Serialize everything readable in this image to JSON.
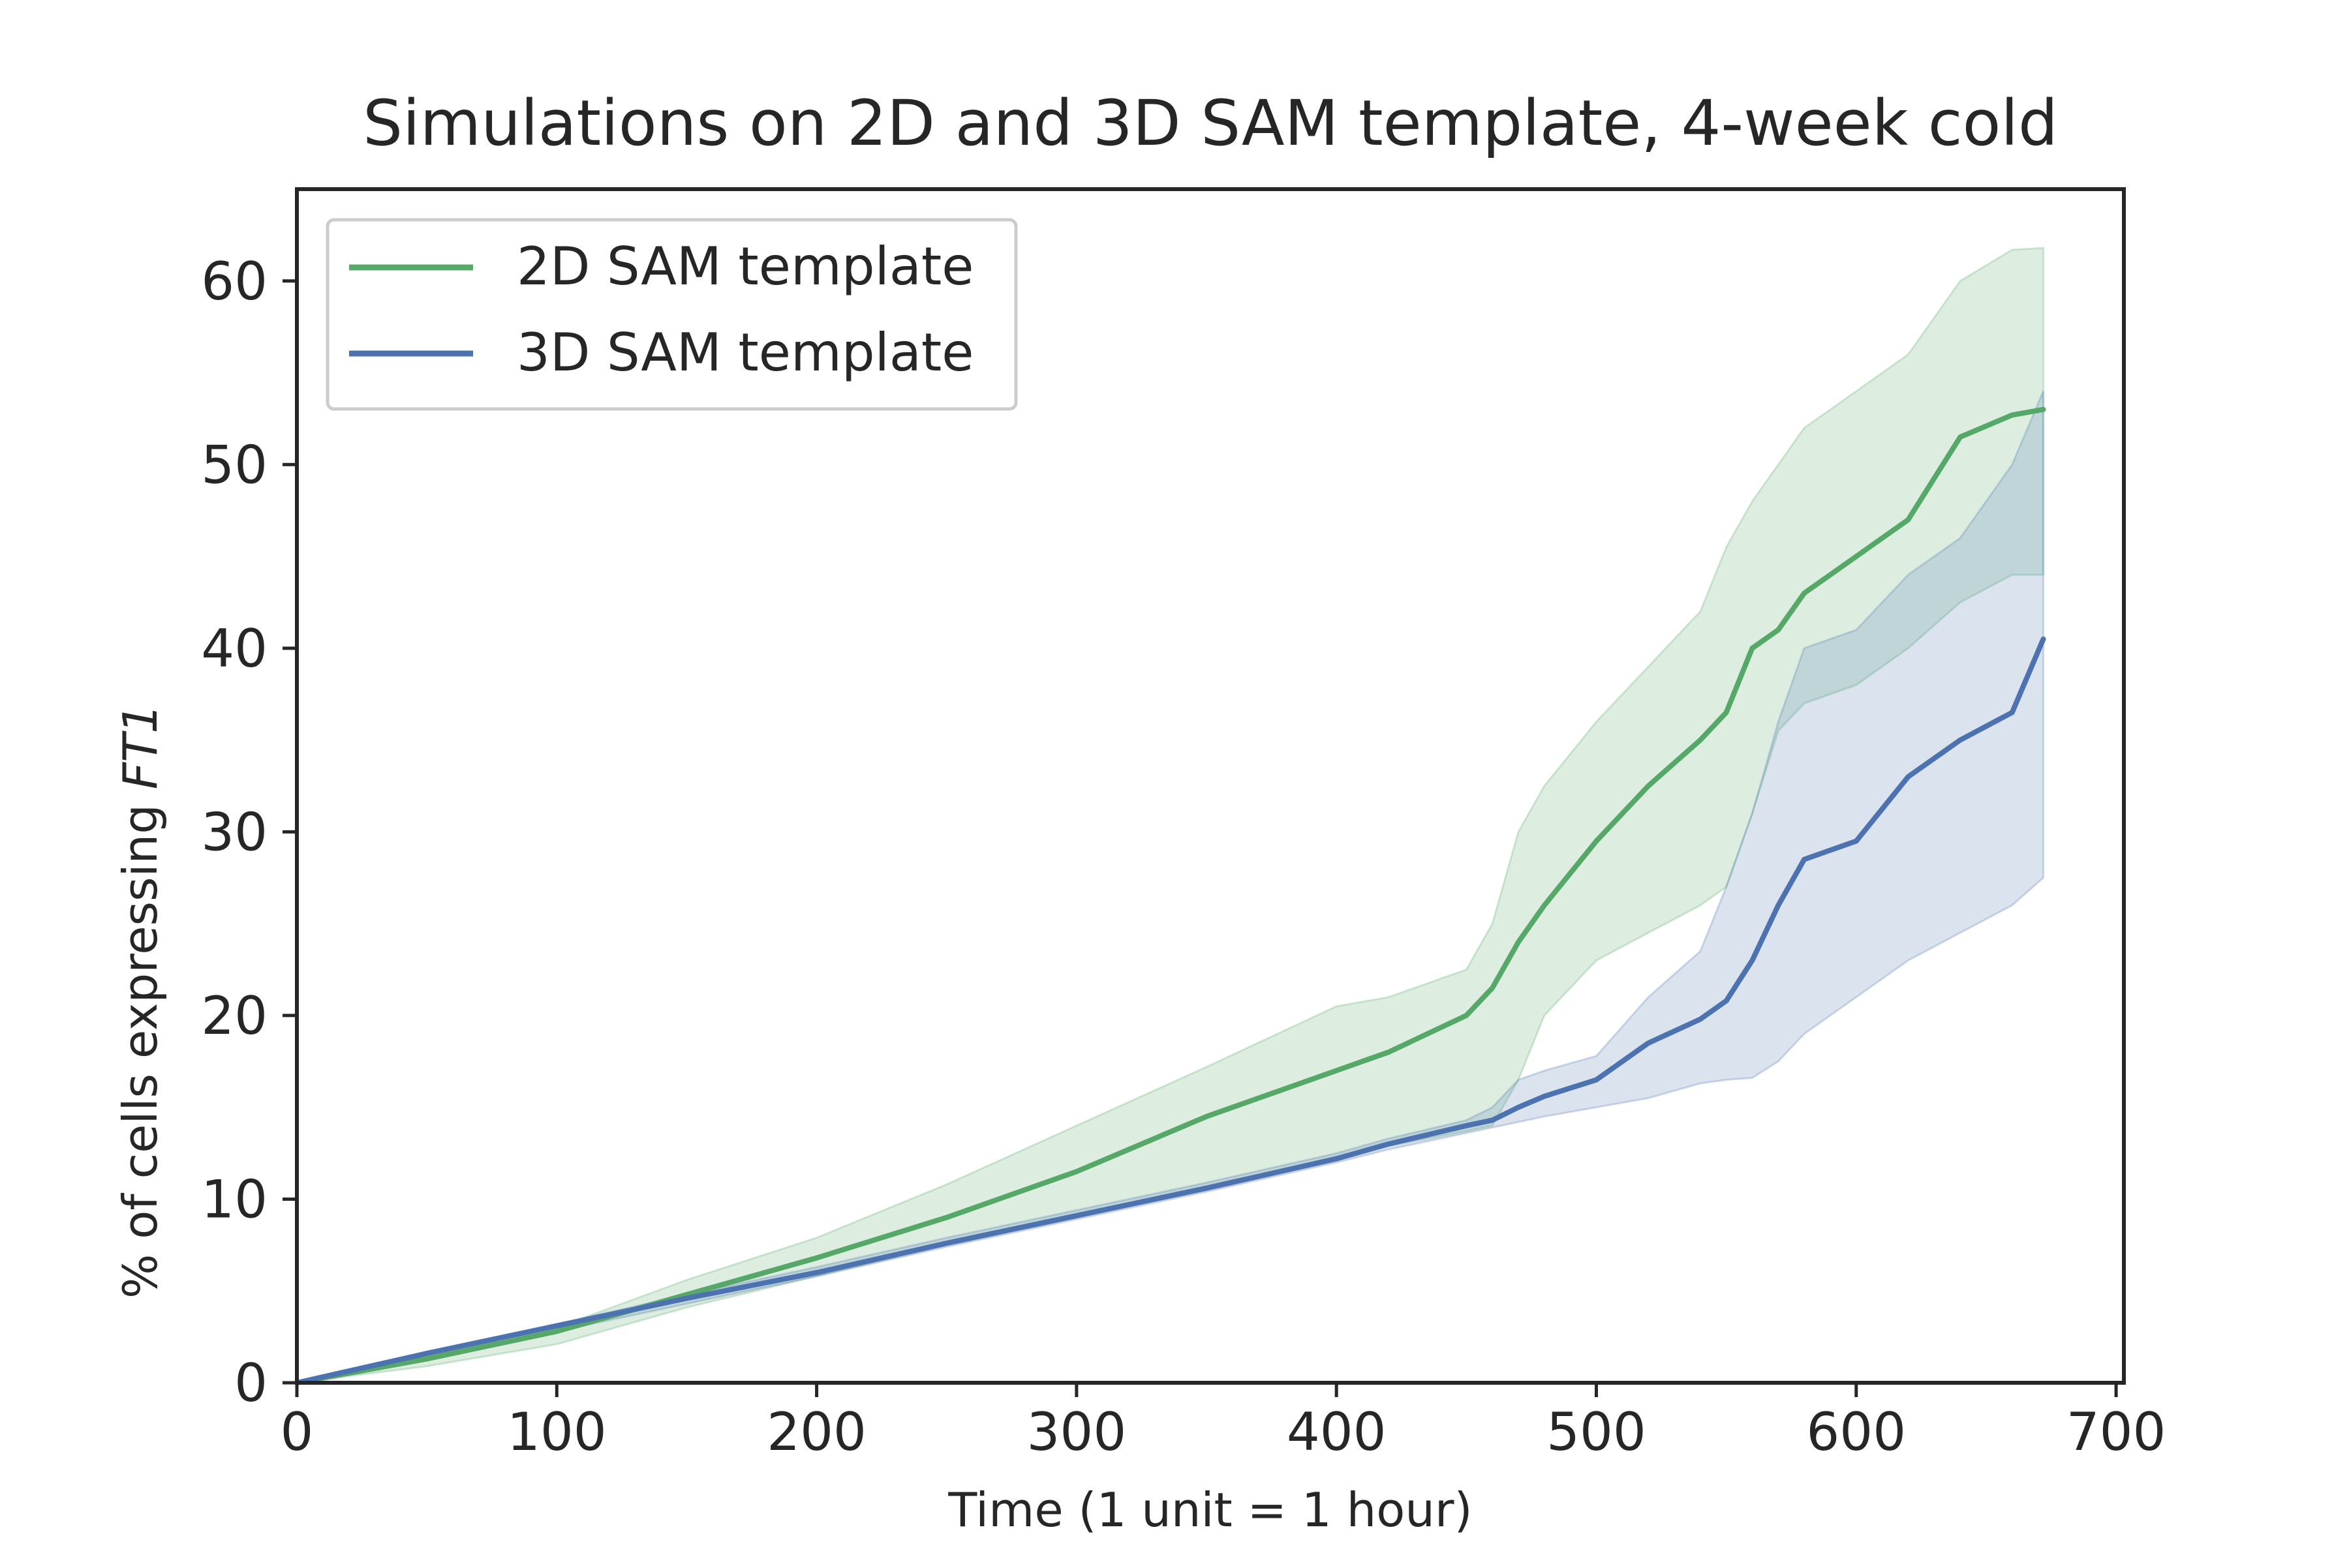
{
  "chart_data": {
    "type": "line",
    "title": "Simulations on 2D and 3D SAM template, 4-week cold",
    "xlabel": "Time (1 unit = 1 hour)",
    "ylabel_prefix": "% of cells expressing ",
    "ylabel_italic": "FT1",
    "xlim": [
      0,
      703
    ],
    "ylim": [
      0,
      65
    ],
    "xticks": [
      0,
      100,
      200,
      300,
      400,
      500,
      600,
      700
    ],
    "yticks": [
      0,
      10,
      20,
      30,
      40,
      50,
      60
    ],
    "grid": false,
    "legend_position": "top-left",
    "x": [
      0,
      50,
      100,
      150,
      200,
      250,
      300,
      350,
      400,
      420,
      450,
      460,
      470,
      480,
      500,
      520,
      540,
      550,
      560,
      570,
      580,
      600,
      620,
      640,
      660,
      672
    ],
    "series": [
      {
        "name": "2D SAM template",
        "color": "#55a868",
        "values": [
          0,
          1.3,
          2.8,
          4.8,
          6.8,
          9.0,
          11.5,
          14.5,
          17.0,
          18.0,
          20.0,
          21.5,
          24.0,
          26.0,
          29.5,
          32.5,
          35.0,
          36.5,
          40.0,
          41.0,
          43.0,
          45.0,
          47.0,
          51.5,
          52.7,
          53.0
        ],
        "lower": [
          0,
          0.9,
          2.1,
          4.1,
          5.8,
          7.5,
          9.0,
          10.7,
          12.3,
          12.9,
          13.7,
          14.0,
          16.5,
          20.0,
          23.0,
          24.5,
          26.0,
          27.0,
          31.0,
          35.5,
          37.0,
          38.0,
          40.0,
          42.5,
          44.0,
          44.0
        ],
        "upper": [
          0,
          1.5,
          3.0,
          5.6,
          7.9,
          10.8,
          14.0,
          17.2,
          20.5,
          21.0,
          22.5,
          25.0,
          30.0,
          32.5,
          36.0,
          39.0,
          42.0,
          45.5,
          48.0,
          50.0,
          52.0,
          54.0,
          56.0,
          60.0,
          61.7,
          61.8
        ]
      },
      {
        "name": "3D SAM template",
        "color": "#4c72b0",
        "values": [
          0,
          1.6,
          3.1,
          4.6,
          6.0,
          7.6,
          9.1,
          10.6,
          12.2,
          13.0,
          14.0,
          14.3,
          15.0,
          15.6,
          16.5,
          18.5,
          19.8,
          20.8,
          23.0,
          26.0,
          28.5,
          29.5,
          33.0,
          35.0,
          36.5,
          40.5
        ],
        "lower": [
          0,
          1.4,
          2.8,
          4.3,
          5.8,
          7.4,
          8.9,
          10.4,
          12.0,
          12.7,
          13.6,
          13.9,
          14.2,
          14.5,
          15.0,
          15.5,
          16.3,
          16.5,
          16.6,
          17.5,
          19.0,
          21.0,
          23.0,
          24.5,
          26.0,
          27.5
        ],
        "upper": [
          0,
          1.7,
          3.2,
          4.8,
          6.3,
          7.9,
          9.4,
          10.9,
          12.5,
          13.3,
          14.3,
          15.0,
          16.5,
          17.0,
          17.8,
          21.0,
          23.5,
          27.0,
          31.0,
          36.0,
          40.0,
          41.0,
          44.0,
          46.0,
          50.0,
          54.0
        ]
      }
    ]
  }
}
